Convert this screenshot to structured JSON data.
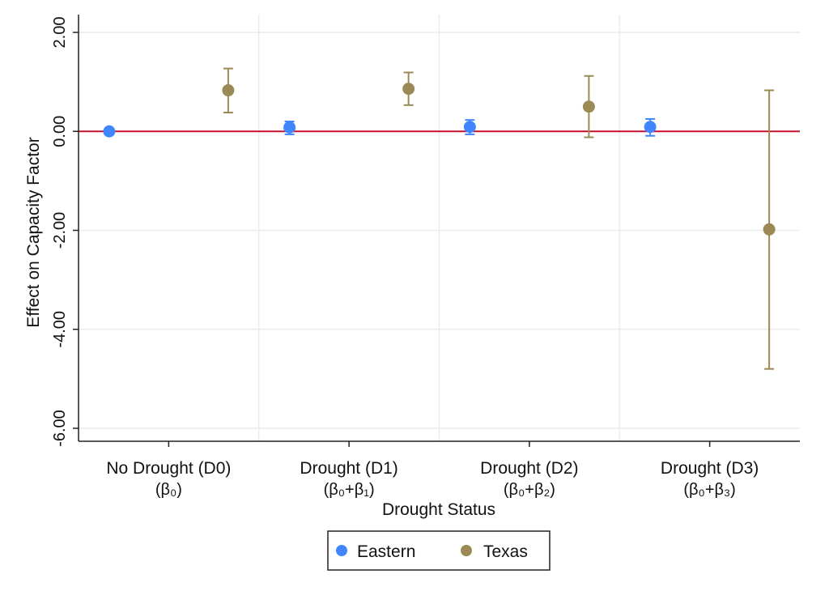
{
  "chart_data": {
    "type": "scatter",
    "subtype": "coefficient plot with 95% confidence intervals",
    "xlabel": "Drought Status",
    "ylabel": "Effect on Capacity Factor",
    "ylim": [
      -6,
      2
    ],
    "yticks": [
      {
        "value": 2,
        "label": "2.00"
      },
      {
        "value": 0,
        "label": "0.00"
      },
      {
        "value": -2,
        "label": "-2.00"
      },
      {
        "value": -4,
        "label": "-4.00"
      },
      {
        "value": -6,
        "label": "-6.00"
      }
    ],
    "categories": [
      {
        "label": "No Drought (D0)",
        "sublabel": "(β₀)"
      },
      {
        "label": "Drought (D1)",
        "sublabel": "(β₀+β₁)"
      },
      {
        "label": "Drought (D2)",
        "sublabel": "(β₀+β₂)"
      },
      {
        "label": "Drought (D3)",
        "sublabel": "(β₀+β₃)"
      }
    ],
    "grid": true,
    "reference_line": {
      "y": 0,
      "color": "#c8102e"
    },
    "legend_position": "bottom",
    "series": [
      {
        "name": "Eastern",
        "color": "#3f86ff",
        "values": [
          0.0,
          0.08,
          0.09,
          0.09
        ],
        "ci_low": [
          -0.06,
          -0.06,
          -0.06,
          -0.09
        ],
        "ci_high": [
          0.06,
          0.2,
          0.23,
          0.25
        ]
      },
      {
        "name": "Texas",
        "color": "#9b8a55",
        "values": [
          0.83,
          0.86,
          0.5,
          -1.98
        ],
        "ci_low": [
          0.38,
          0.53,
          -0.12,
          -4.8
        ],
        "ci_high": [
          1.27,
          1.19,
          1.12,
          0.83
        ]
      }
    ]
  }
}
